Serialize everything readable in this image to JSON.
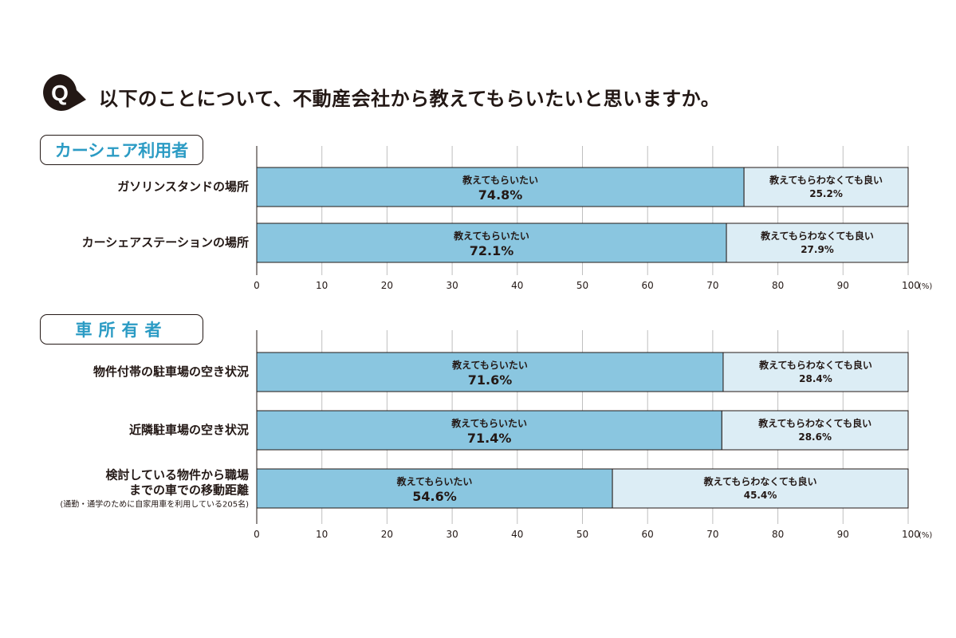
{
  "question": {
    "badge": "Q",
    "text": "以下のことについて、不動産会社から教えてもらいたいと思いますか。"
  },
  "colors": {
    "want": "#8ac6e0",
    "not_needed": "#dcedf5",
    "accent": "#2b9bc4",
    "ink": "#231815",
    "grid": "#bfbfbf"
  },
  "chart_data": [
    {
      "type": "bar",
      "orientation": "horizontal",
      "stacked": true,
      "title": "カーシェア利用者",
      "categories": [
        "ガソリンスタンドの場所",
        "カーシェアステーションの場所"
      ],
      "category_notes": [
        "",
        ""
      ],
      "series": [
        {
          "name": "教えてもらいたい",
          "values": [
            74.8,
            72.1
          ]
        },
        {
          "name": "教えてもらわなくても良い",
          "values": [
            25.2,
            27.9
          ]
        }
      ],
      "xlim": [
        0,
        100
      ],
      "ticks": [
        "0",
        "10",
        "20",
        "30",
        "40",
        "50",
        "60",
        "70",
        "80",
        "90",
        "100"
      ],
      "unit": "(%)",
      "grid": true
    },
    {
      "type": "bar",
      "orientation": "horizontal",
      "stacked": true,
      "title": "車所有者",
      "categories": [
        "物件付帯の駐車場の空き状況",
        "近隣駐車場の空き状況",
        "検討している物件から職場\nまでの車での移動距離"
      ],
      "category_notes": [
        "",
        "",
        "(通勤・通学のために自家用車を利用している205名)"
      ],
      "series": [
        {
          "name": "教えてもらいたい",
          "values": [
            71.6,
            71.4,
            54.6
          ]
        },
        {
          "name": "教えてもらわなくても良い",
          "values": [
            28.4,
            28.6,
            45.4
          ]
        }
      ],
      "xlim": [
        0,
        100
      ],
      "ticks": [
        "0",
        "10",
        "20",
        "30",
        "40",
        "50",
        "60",
        "70",
        "80",
        "90",
        "100"
      ],
      "unit": "(%)",
      "grid": true
    }
  ]
}
